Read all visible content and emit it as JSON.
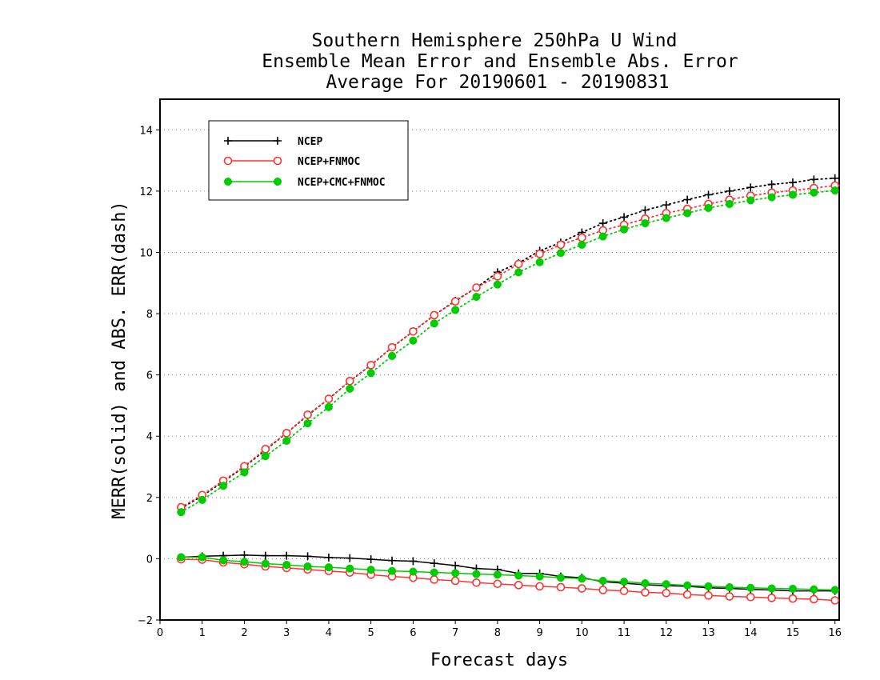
{
  "chart_data": {
    "type": "line",
    "title_lines": [
      "Southern Hemisphere 250hPa U Wind",
      "Ensemble Mean Error and Ensemble Abs. Error",
      "Average For 20190601 - 20190831"
    ],
    "xlabel": "Forecast days",
    "ylabel": "MERR(solid) and ABS. ERR(dash)",
    "xlim": [
      0,
      16.1
    ],
    "ylim": [
      -2,
      15
    ],
    "x_ticks": [
      0,
      1,
      2,
      3,
      4,
      5,
      6,
      7,
      8,
      9,
      10,
      11,
      12,
      13,
      14,
      15,
      16
    ],
    "y_ticks": [
      -2,
      0,
      2,
      4,
      6,
      8,
      10,
      12,
      14
    ],
    "grid": "horizontal dotted",
    "legend_position": "top-left",
    "x": [
      0.5,
      1,
      1.5,
      2,
      2.5,
      3,
      3.5,
      4,
      4.5,
      5,
      5.5,
      6,
      6.5,
      7,
      7.5,
      8,
      8.5,
      9,
      9.5,
      10,
      10.5,
      11,
      11.5,
      12,
      12.5,
      13,
      13.5,
      14,
      14.5,
      15,
      15.5,
      16
    ],
    "series": [
      {
        "name": "NCEP",
        "color": "#000000",
        "marker": "plus",
        "merr": [
          0.05,
          0.08,
          0.1,
          0.12,
          0.1,
          0.1,
          0.08,
          0.04,
          0.02,
          -0.02,
          -0.06,
          -0.08,
          -0.15,
          -0.22,
          -0.32,
          -0.35,
          -0.48,
          -0.48,
          -0.58,
          -0.62,
          -0.75,
          -0.8,
          -0.85,
          -0.88,
          -0.9,
          -0.95,
          -0.97,
          -1.0,
          -1.02,
          -1.05,
          -1.05,
          -1.05
        ],
        "abs_err": [
          1.65,
          2.05,
          2.52,
          3.0,
          3.55,
          4.1,
          4.68,
          5.22,
          5.8,
          6.32,
          6.9,
          7.42,
          7.95,
          8.42,
          8.85,
          9.35,
          9.65,
          10.05,
          10.32,
          10.65,
          10.95,
          11.15,
          11.38,
          11.55,
          11.72,
          11.88,
          12.0,
          12.12,
          12.22,
          12.28,
          12.38,
          12.42
        ]
      },
      {
        "name": "NCEP+FNMOC",
        "color": "#ff3333",
        "marker": "open-circle",
        "merr": [
          -0.02,
          -0.03,
          -0.12,
          -0.18,
          -0.25,
          -0.3,
          -0.35,
          -0.4,
          -0.45,
          -0.52,
          -0.58,
          -0.62,
          -0.68,
          -0.72,
          -0.78,
          -0.82,
          -0.86,
          -0.9,
          -0.93,
          -0.97,
          -1.02,
          -1.05,
          -1.1,
          -1.12,
          -1.17,
          -1.2,
          -1.23,
          -1.25,
          -1.28,
          -1.3,
          -1.32,
          -1.36
        ],
        "abs_err": [
          1.68,
          2.08,
          2.55,
          3.02,
          3.58,
          4.1,
          4.7,
          5.22,
          5.8,
          6.32,
          6.9,
          7.42,
          7.95,
          8.4,
          8.85,
          9.22,
          9.62,
          9.95,
          10.25,
          10.48,
          10.72,
          10.9,
          11.1,
          11.28,
          11.42,
          11.58,
          11.72,
          11.85,
          11.95,
          12.02,
          12.1,
          12.18
        ]
      },
      {
        "name": "NCEP+CMC+FNMOC",
        "color": "#00cc00",
        "marker": "filled-circle",
        "merr": [
          0.05,
          0.05,
          -0.05,
          -0.1,
          -0.16,
          -0.2,
          -0.25,
          -0.28,
          -0.32,
          -0.36,
          -0.4,
          -0.42,
          -0.45,
          -0.47,
          -0.5,
          -0.52,
          -0.55,
          -0.58,
          -0.62,
          -0.65,
          -0.72,
          -0.75,
          -0.8,
          -0.83,
          -0.87,
          -0.9,
          -0.93,
          -0.95,
          -0.97,
          -0.98,
          -1.0,
          -1.02
        ],
        "abs_err": [
          1.52,
          1.92,
          2.38,
          2.82,
          3.35,
          3.85,
          4.42,
          4.95,
          5.55,
          6.06,
          6.62,
          7.12,
          7.68,
          8.12,
          8.55,
          8.95,
          9.35,
          9.68,
          9.98,
          10.25,
          10.52,
          10.75,
          10.95,
          11.12,
          11.28,
          11.45,
          11.58,
          11.7,
          11.8,
          11.88,
          11.95,
          12.02
        ]
      }
    ]
  }
}
